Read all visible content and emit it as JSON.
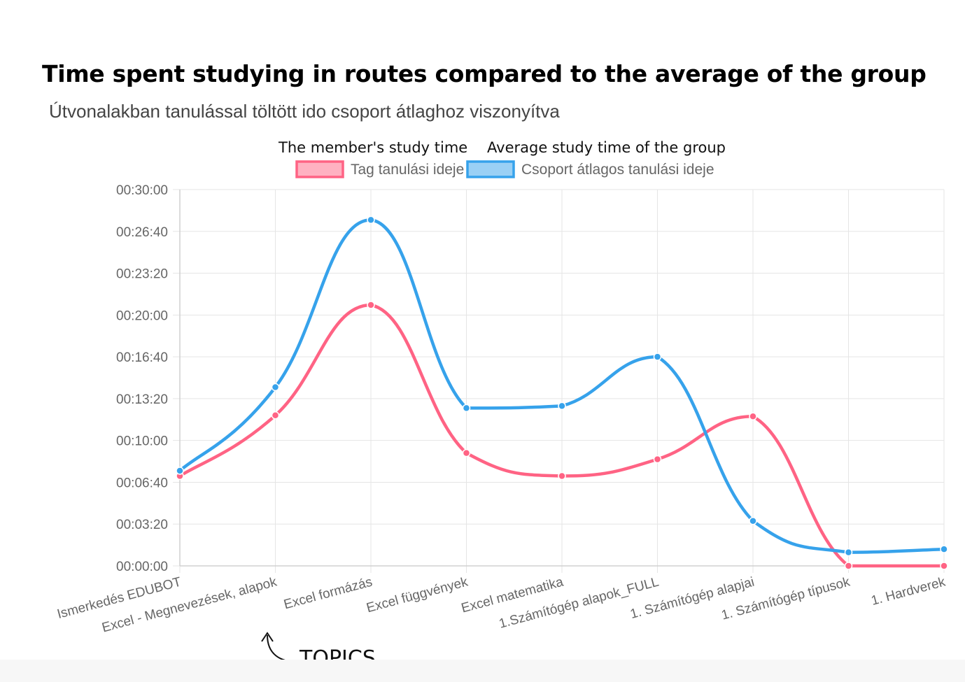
{
  "header": {
    "title": "Time spent studying in routes compared to the average of the group",
    "subtitle": "Útvonalakban tanulással töltött ido csoport átlaghoz viszonyítva"
  },
  "annotations": {
    "member_legend_en": "The member's study time",
    "group_legend_en": "Average study time of the group",
    "topics": "TOPICS"
  },
  "colors": {
    "member": "#ff6384",
    "member_fill": "#ffb1c1",
    "group": "#36a2eb",
    "group_fill": "#9ad0f5",
    "grid": "#e5e5e5",
    "tick": "#666666"
  },
  "chart_data": {
    "type": "line",
    "title": "Útvonalakban tanulással töltött ido csoport átlaghoz viszonyítva",
    "xlabel": "",
    "ylabel": "",
    "categories": [
      "Ismerkedés EDUBOT",
      "Excel - Megnevezések, alapok",
      "Excel formázás",
      "Excel függvények",
      "Excel matematika",
      "1.Számítógép alapok_FULL",
      "1. Számítógép alapjai",
      "1. Számítógép típusok",
      "1. Hardverek"
    ],
    "ylim": [
      0,
      1800
    ],
    "yticks": [
      0,
      200,
      400,
      600,
      800,
      1000,
      1200,
      1400,
      1600,
      1800
    ],
    "ytick_labels": [
      "00:00:00",
      "00:03:20",
      "00:06:40",
      "00:10:00",
      "00:13:20",
      "00:16:40",
      "00:20:00",
      "00:23:20",
      "00:26:40",
      "00:30:00"
    ],
    "legend_position": "top-center",
    "series": [
      {
        "name": "Tag tanulási ideje",
        "values": [
          430,
          720,
          1248,
          540,
          430,
          510,
          715,
          0,
          0
        ]
      },
      {
        "name": "Csoport átlagos tanulási ideje",
        "values": [
          455,
          855,
          1655,
          755,
          765,
          1000,
          215,
          65,
          80
        ]
      }
    ]
  }
}
